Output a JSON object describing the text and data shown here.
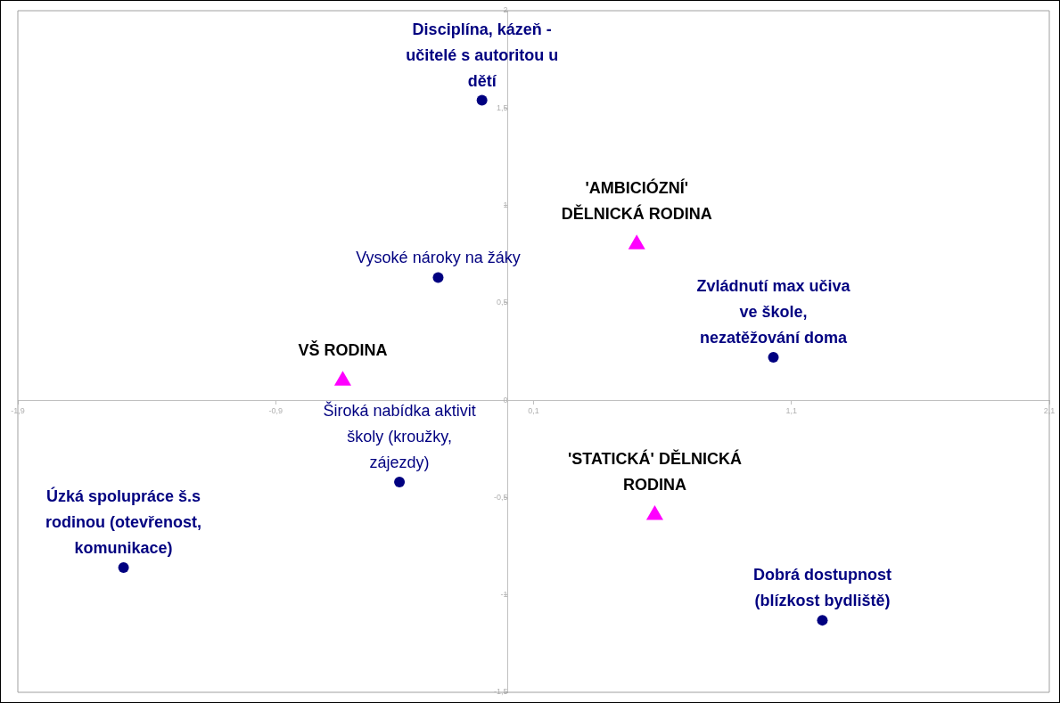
{
  "chart_data": {
    "type": "scatter",
    "series": [
      {
        "color": "#000080",
        "marker": "circle",
        "x": [
          -0.1,
          -0.27,
          -0.42,
          -1.49,
          1.03,
          1.22
        ],
        "values": [
          1.54,
          0.63,
          -0.42,
          -0.86,
          0.22,
          -1.13
        ]
      },
      {
        "color": "#ff00ff",
        "marker": "triangle",
        "x": [
          -0.64,
          0.5,
          0.57
        ],
        "values": [
          0.1,
          0.8,
          -0.59
        ]
      }
    ],
    "annotations": [
      {
        "text": "Disciplína, kázeň -\nučitelé s autoritou u\ndětí",
        "x": -0.1,
        "y": 1.54
      },
      {
        "text": "Vysoké nároky na žáky",
        "x": -0.27,
        "y": 0.63
      },
      {
        "text": "Široká nabídka aktivit\nškoly (kroužky,\nzájezdy)",
        "x": -0.42,
        "y": -0.42
      },
      {
        "text": "Úzká spolupráce š.s\nrodinou (otevřenost,\nkomunikace)",
        "x": -1.49,
        "y": -0.86
      },
      {
        "text": "Zvládnutí max učiva\nve škole,\nnezatěžování doma",
        "x": 1.03,
        "y": 0.22
      },
      {
        "text": "Dobrá dostupnost\n(blízkost bydliště)",
        "x": 1.22,
        "y": -1.13
      },
      {
        "text": "VŠ RODINA",
        "x": -0.64,
        "y": 0.1
      },
      {
        "text": "'AMBICIÓZNÍ'\nDĚLNICKÁ RODINA",
        "x": 0.5,
        "y": 0.8
      },
      {
        "text": "'STATICKÁ' DĚLNICKÁ\nRODINA",
        "x": 0.57,
        "y": -0.59
      }
    ],
    "xlim": [
      -1.9,
      2.1
    ],
    "xticks": [
      {
        "value": -1.9,
        "label": "-1,9"
      },
      {
        "value": -0.9,
        "label": "-0,9"
      },
      {
        "value": 0.1,
        "label": "0,1"
      },
      {
        "value": 1.1,
        "label": "1,1"
      },
      {
        "value": 2.1,
        "label": "2,1"
      }
    ],
    "ylim": [
      -1.5,
      2
    ],
    "yticks": [
      {
        "value": -1.5,
        "label": "-1,5"
      },
      -1,
      {
        "value": -0.5,
        "label": "-0,5"
      },
      0,
      {
        "value": 0.5,
        "label": "0,5"
      },
      1,
      {
        "value": 1.5,
        "label": "1,5"
      },
      2
    ],
    "grid": false,
    "legend": false
  }
}
